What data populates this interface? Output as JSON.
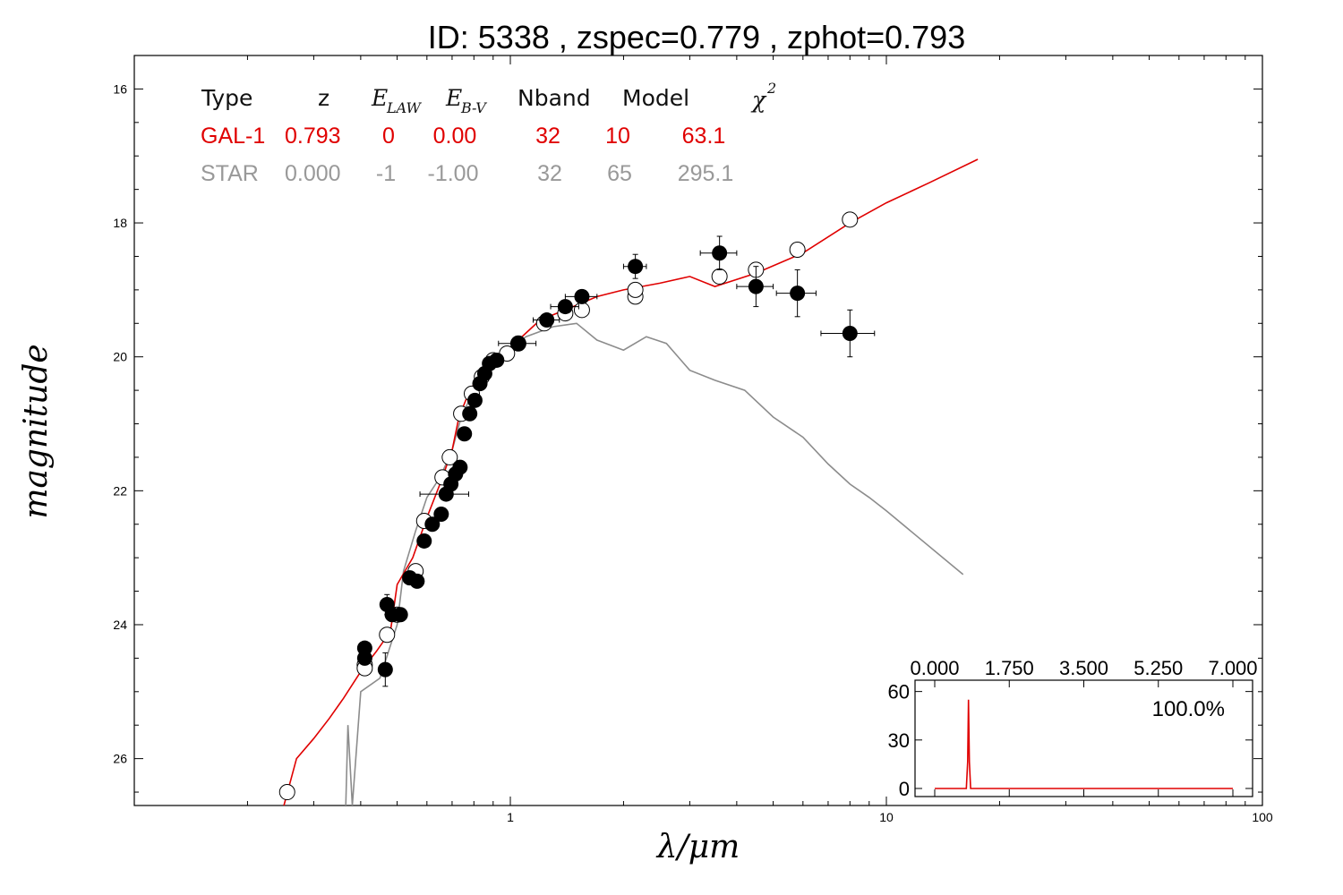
{
  "title": "ID:  5338  , zspec=0.779 , zphot=0.793",
  "colors": {
    "gal": "#e00000",
    "star": "#8c8c8c",
    "points": "#000000"
  },
  "table": {
    "headers": {
      "type": "Type",
      "z": "z",
      "elaw": "E",
      "elaw_sub": "LAW",
      "ebv": "E",
      "ebv_sub": "B-V",
      "nband": "Nband",
      "model": "Model",
      "chi": "χ",
      "chi_sup": "2"
    },
    "rows": [
      {
        "type": "GAL-1",
        "z": "0.793",
        "elaw": "0",
        "ebv": "0.00",
        "nband": "32",
        "model": "10",
        "chi2": "63.1",
        "color": "#e00000"
      },
      {
        "type": "STAR",
        "z": "0.000",
        "elaw": "-1",
        "ebv": "-1.00",
        "nband": "32",
        "model": "65",
        "chi2": "295.1",
        "color": "#999999"
      }
    ]
  },
  "chart_data": [
    {
      "type": "scatter",
      "xlabel": "λ/μm",
      "ylabel": "magnitude",
      "xscale": "log",
      "xlim": [
        0.1,
        100
      ],
      "ylim": [
        26.7,
        15.5
      ],
      "y_inverted": true,
      "xticks": [
        1,
        10,
        100
      ],
      "xtick_labels": [
        "1",
        "10",
        "100"
      ],
      "yticks": [
        16,
        18,
        20,
        22,
        24,
        26
      ],
      "ytick_labels": [
        "16",
        "18",
        "20",
        "22",
        "24",
        "26"
      ],
      "series": [
        {
          "kind": "line",
          "points": [
            [
              0.25,
              26.7
            ],
            [
              0.27,
              26.0
            ],
            [
              0.3,
              25.7
            ],
            [
              0.33,
              25.4
            ],
            [
              0.36,
              25.1
            ],
            [
              0.4,
              24.7
            ],
            [
              0.44,
              24.4
            ],
            [
              0.48,
              24.1
            ],
            [
              0.5,
              23.4
            ],
            [
              0.55,
              23.0
            ],
            [
              0.6,
              22.4
            ],
            [
              0.65,
              21.9
            ],
            [
              0.7,
              21.4
            ],
            [
              0.73,
              20.9
            ],
            [
              0.78,
              20.5
            ],
            [
              0.85,
              20.2
            ],
            [
              0.95,
              20.0
            ],
            [
              1.05,
              19.75
            ],
            [
              1.2,
              19.45
            ],
            [
              1.4,
              19.3
            ],
            [
              1.7,
              19.1
            ],
            [
              2.0,
              19.0
            ],
            [
              2.5,
              18.9
            ],
            [
              3.0,
              18.8
            ],
            [
              3.5,
              18.95
            ],
            [
              4.5,
              18.75
            ],
            [
              6.0,
              18.45
            ],
            [
              8.0,
              18.0
            ],
            [
              10,
              17.7
            ],
            [
              13,
              17.4
            ],
            [
              17.5,
              17.05
            ]
          ]
        },
        {
          "kind": "line",
          "points": [
            [
              0.365,
              26.7
            ],
            [
              0.37,
              25.5
            ],
            [
              0.38,
              26.7
            ],
            [
              0.4,
              25.0
            ],
            [
              0.45,
              24.8
            ],
            [
              0.5,
              24.0
            ],
            [
              0.52,
              23.2
            ],
            [
              0.56,
              22.6
            ],
            [
              0.6,
              22.1
            ],
            [
              0.65,
              21.8
            ],
            [
              0.7,
              21.4
            ],
            [
              0.74,
              20.9
            ],
            [
              0.8,
              20.5
            ],
            [
              0.9,
              20.1
            ],
            [
              1.0,
              19.9
            ],
            [
              1.1,
              19.7
            ],
            [
              1.3,
              19.55
            ],
            [
              1.5,
              19.5
            ],
            [
              1.7,
              19.75
            ],
            [
              2.0,
              19.9
            ],
            [
              2.3,
              19.7
            ],
            [
              2.6,
              19.8
            ],
            [
              3.0,
              20.2
            ],
            [
              3.5,
              20.35
            ],
            [
              4.2,
              20.5
            ],
            [
              5.0,
              20.9
            ],
            [
              6.0,
              21.2
            ],
            [
              7.0,
              21.6
            ],
            [
              8.0,
              21.9
            ],
            [
              9.0,
              22.1
            ],
            [
              10,
              22.3
            ],
            [
              16,
              23.25
            ]
          ]
        },
        {
          "kind": "model_points",
          "points": [
            [
              0.255,
              26.5
            ],
            [
              0.41,
              24.6
            ],
            [
              0.41,
              24.65
            ],
            [
              0.47,
              24.15
            ],
            [
              0.5,
              23.85
            ],
            [
              0.56,
              23.2
            ],
            [
              0.59,
              22.45
            ],
            [
              0.66,
              21.8
            ],
            [
              0.69,
              21.5
            ],
            [
              0.74,
              20.85
            ],
            [
              0.79,
              20.55
            ],
            [
              0.84,
              20.3
            ],
            [
              0.9,
              20.05
            ],
            [
              0.98,
              19.95
            ],
            [
              1.05,
              19.8
            ],
            [
              1.23,
              19.5
            ],
            [
              1.4,
              19.35
            ],
            [
              1.55,
              19.3
            ],
            [
              2.15,
              19.1
            ],
            [
              2.15,
              19.0
            ],
            [
              3.6,
              18.8
            ],
            [
              4.5,
              18.7
            ],
            [
              5.8,
              18.4
            ],
            [
              8.0,
              17.95
            ]
          ]
        },
        {
          "kind": "observed",
          "points": [
            {
              "x": 0.41,
              "y": 24.35,
              "xerr": 0.01,
              "yerr": 0.1
            },
            {
              "x": 0.41,
              "y": 24.5,
              "xerr": 0.01,
              "yerr": 0.1
            },
            {
              "x": 0.465,
              "y": 24.67,
              "xerr": 0.01,
              "yerr": 0.25
            },
            {
              "x": 0.47,
              "y": 23.7,
              "xerr": 0.01,
              "yerr": 0.15
            },
            {
              "x": 0.485,
              "y": 23.85,
              "xerr": 0.015,
              "yerr": 0.1
            },
            {
              "x": 0.51,
              "y": 23.85,
              "xerr": 0.01,
              "yerr": 0.1
            },
            {
              "x": 0.54,
              "y": 23.3,
              "xerr": 0.01,
              "yerr": 0.1
            },
            {
              "x": 0.565,
              "y": 23.35,
              "xerr": 0.01,
              "yerr": 0.08
            },
            {
              "x": 0.59,
              "y": 22.75,
              "xerr": 0.01,
              "yerr": 0.08
            },
            {
              "x": 0.62,
              "y": 22.5,
              "xerr": 0.01,
              "yerr": 0.08
            },
            {
              "x": 0.655,
              "y": 22.35,
              "xerr": 0.015,
              "yerr": 0.08
            },
            {
              "x": 0.675,
              "y": 22.05,
              "xerr": 0.1,
              "yerr": 0.08
            },
            {
              "x": 0.695,
              "y": 21.9,
              "xerr": 0.015,
              "yerr": 0.08
            },
            {
              "x": 0.715,
              "y": 21.75,
              "xerr": 0.015,
              "yerr": 0.08
            },
            {
              "x": 0.735,
              "y": 21.65,
              "xerr": 0.02,
              "yerr": 0.08
            },
            {
              "x": 0.755,
              "y": 21.15,
              "xerr": 0.02,
              "yerr": 0.08
            },
            {
              "x": 0.78,
              "y": 20.85,
              "xerr": 0.03,
              "yerr": 0.08
            },
            {
              "x": 0.805,
              "y": 20.65,
              "xerr": 0.03,
              "yerr": 0.08
            },
            {
              "x": 0.83,
              "y": 20.4,
              "xerr": 0.03,
              "yerr": 0.08
            },
            {
              "x": 0.855,
              "y": 20.25,
              "xerr": 0.03,
              "yerr": 0.08
            },
            {
              "x": 0.88,
              "y": 20.1,
              "xerr": 0.03,
              "yerr": 0.08
            },
            {
              "x": 0.92,
              "y": 20.05,
              "xerr": 0.03,
              "yerr": 0.08
            },
            {
              "x": 1.05,
              "y": 19.8,
              "xerr": 0.12,
              "yerr": 0.08
            },
            {
              "x": 1.25,
              "y": 19.45,
              "xerr": 0.1,
              "yerr": 0.08
            },
            {
              "x": 1.4,
              "y": 19.25,
              "xerr": 0.12,
              "yerr": 0.08
            },
            {
              "x": 1.55,
              "y": 19.1,
              "xerr": 0.15,
              "yerr": 0.08
            },
            {
              "x": 2.15,
              "y": 18.65,
              "xerr": 0.15,
              "yerr": 0.18
            },
            {
              "x": 3.6,
              "y": 18.45,
              "xerr": 0.4,
              "yerr": 0.25
            },
            {
              "x": 4.5,
              "y": 18.95,
              "xerr": 0.5,
              "yerr": 0.3
            },
            {
              "x": 5.8,
              "y": 19.05,
              "xerr": 0.7,
              "yerr": 0.35
            },
            {
              "x": 8.0,
              "y": 19.65,
              "xerr": 1.3,
              "yerr": 0.35
            }
          ]
        }
      ]
    },
    {
      "type": "line",
      "xlim": [
        0,
        7.0
      ],
      "ylim": [
        -5,
        67
      ],
      "xticks": [
        0,
        1.75,
        3.5,
        5.25,
        7.0
      ],
      "xtick_labels": [
        "0.000",
        "1.750",
        "3.500",
        "5.250",
        "7.000"
      ],
      "yticks": [
        0,
        30,
        60
      ],
      "ytick_labels": [
        "0",
        "30",
        "60"
      ],
      "annotation": "100.0%",
      "peak_z": 0.793,
      "peak_value": 55
    }
  ]
}
